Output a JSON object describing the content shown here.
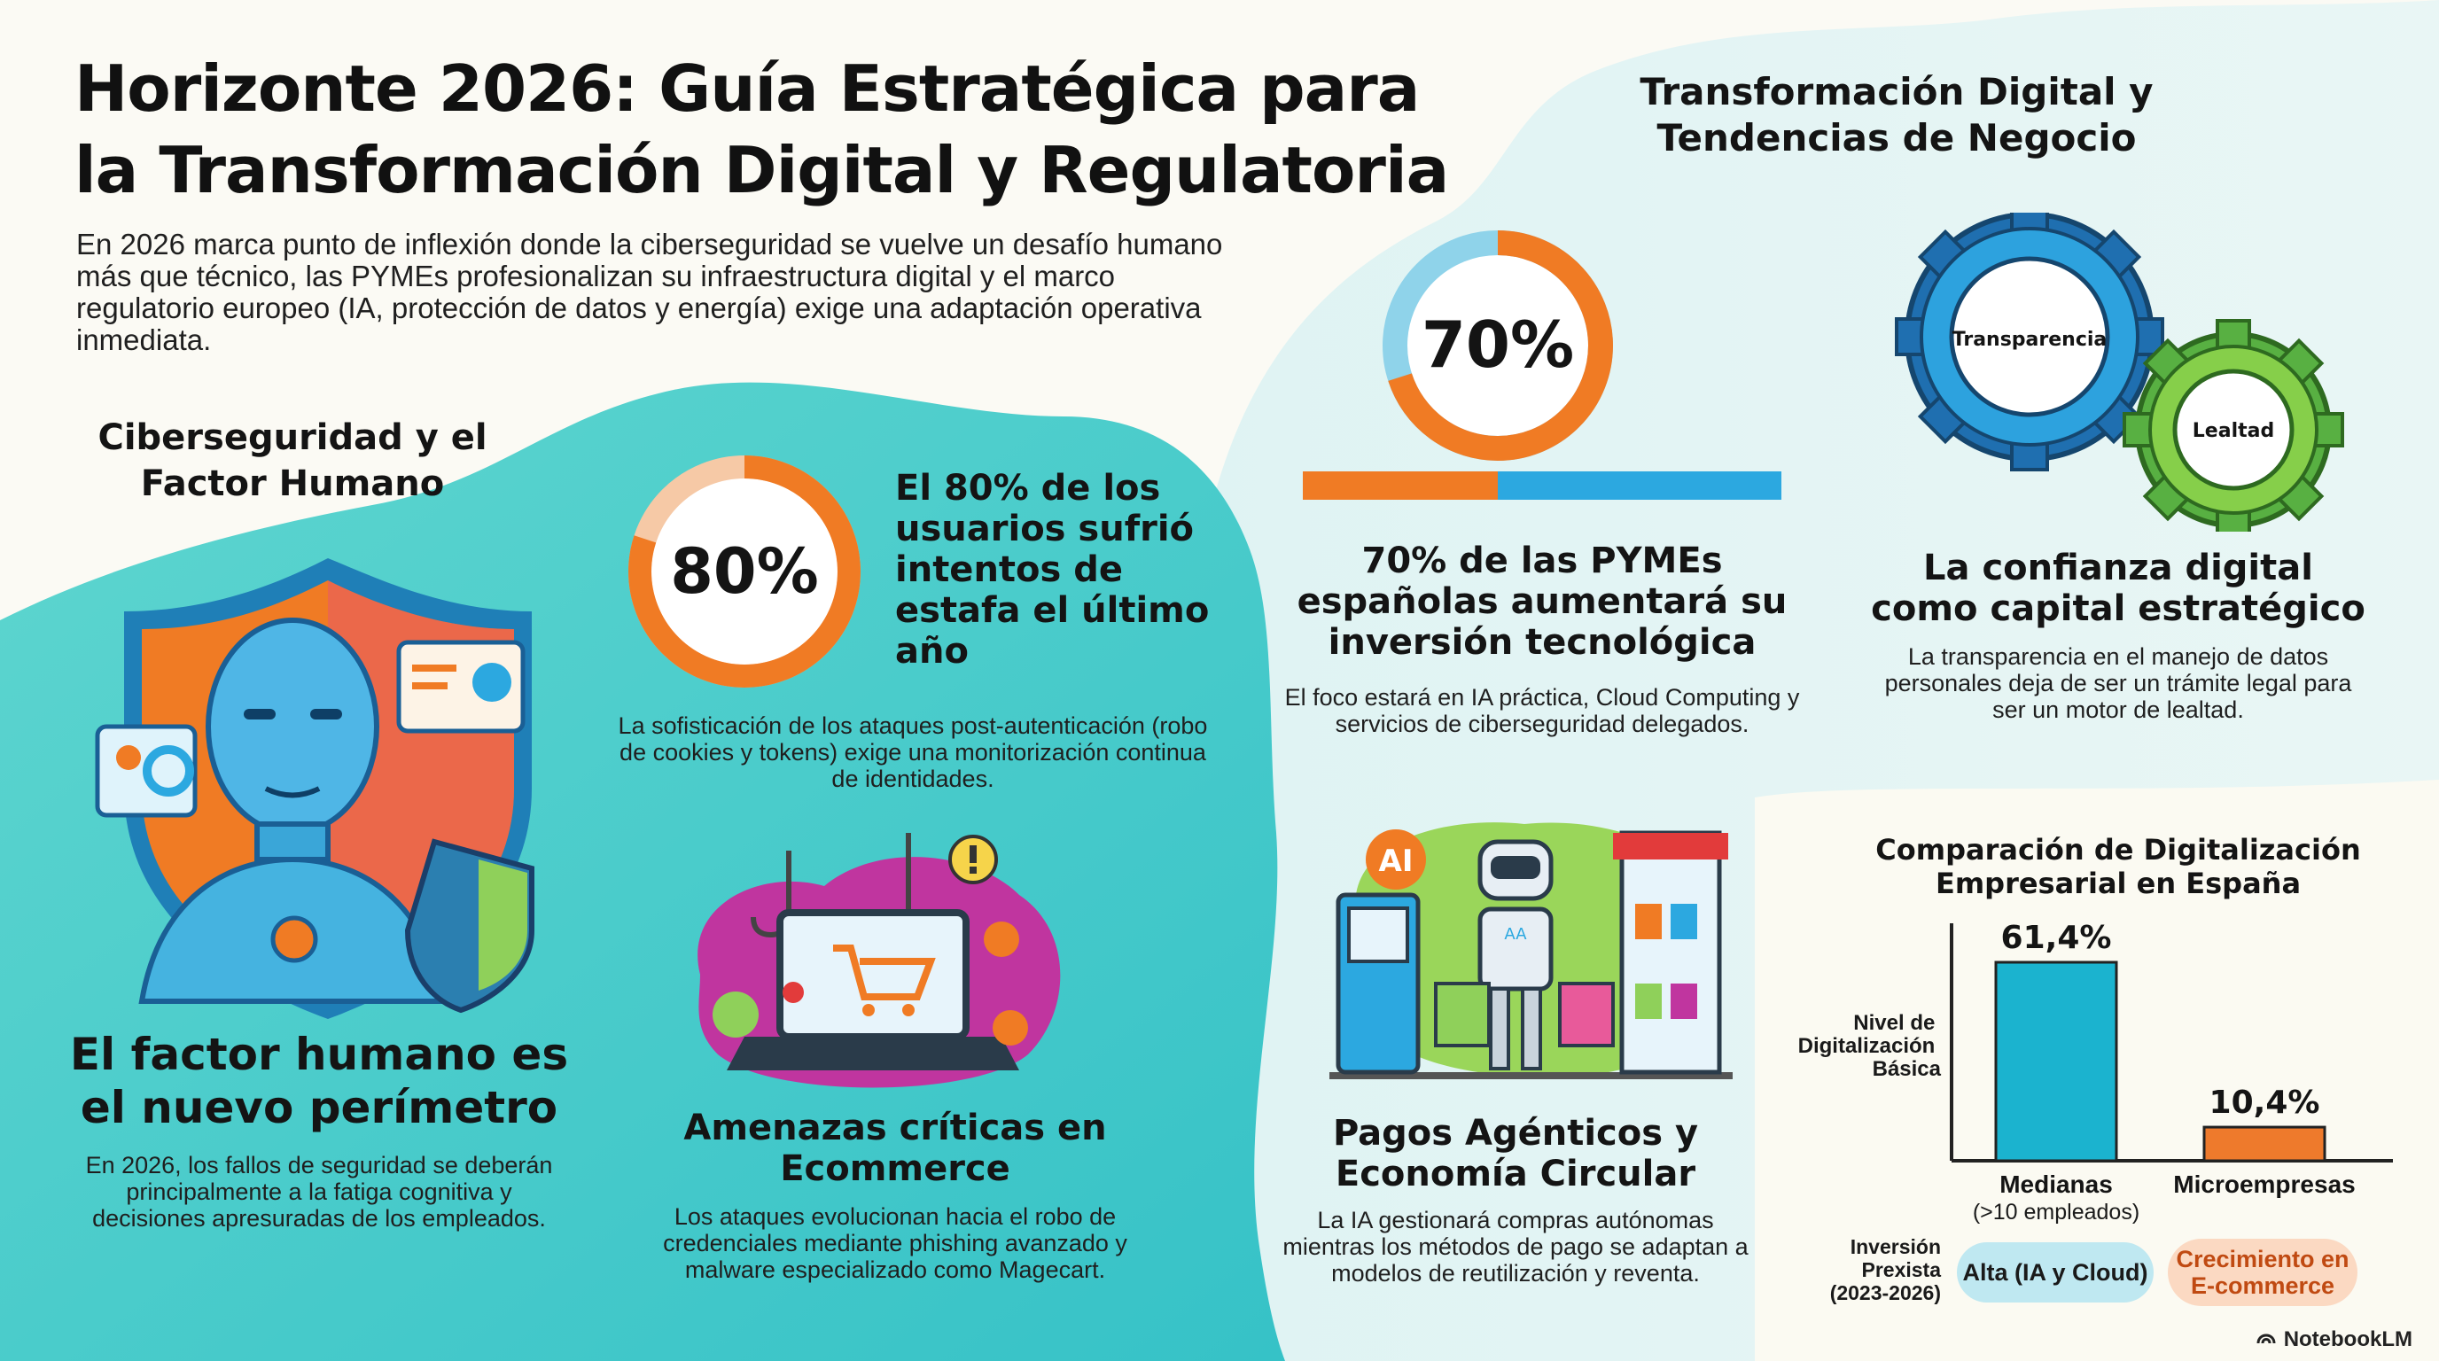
{
  "title": "Horizonte 2026: Guía Estratégica para la Transformación Digital y Regulatoria",
  "intro": "En 2026 marca punto de inflexión donde la ciberseguridad se vuelve un desafío humano más que técnico, las PYMEs profesionalizan su infraestructura digital y el marco regulatorio europeo (IA, protección de datos y energía) exige una adaptación operativa inmediata.",
  "left": {
    "heading": "Ciberseguridad y el Factor Humano",
    "stat": {
      "value": "80%",
      "fraction": 0.8,
      "headline": "El 80% de los usuarios sufrió intentos de estafa el último año",
      "desc": "La sofisticación de los ataques post-autenticación (robo de cookies y tokens) exige una monitorización continua de identidades."
    },
    "human": {
      "headline": "El factor humano es el nuevo perímetro",
      "desc": "En 2026, los fallos de seguridad se deberán principalmente a la fatiga cognitiva y decisiones apresuradas de los empleados."
    },
    "ecommerce": {
      "headline": "Amenazas críticas en Ecommerce",
      "desc": "Los ataques evolucionan hacia el robo de credenciales mediante phishing avanzado y malware especializado como Magecart."
    }
  },
  "right": {
    "heading": "Transformación Digital y Tendencias de Negocio",
    "stat": {
      "value": "70%",
      "fraction": 0.7,
      "headline": "70% de las PYMEs españolas aumentará su inversión tecnológica",
      "desc": "El foco estará en IA práctica, Cloud Computing y servicios de ciberseguridad delegados."
    },
    "trust": {
      "gear1": "Transparencia",
      "gear2": "Lealtad",
      "headline": "La confianza digital como capital estratégico",
      "desc": "La transparencia en el manejo de datos personales deja de ser un trámite legal para ser un motor de lealtad."
    },
    "payments": {
      "ai_badge": "AI",
      "robot_tag": "AA",
      "headline": "Pagos Agénticos y Economía Circular",
      "desc": "La IA gestionará compras autónomas mientras los métodos de pago se adaptan a modelos de reutilización y reventa."
    }
  },
  "chart_data": {
    "type": "bar",
    "title": "Comparación de Digitalización Empresarial en España",
    "ylabel": "Nivel de Digitalización Básica",
    "categories": [
      "Medianas",
      "Microempresas"
    ],
    "category_notes": [
      "(>10 empleados)",
      ""
    ],
    "values": [
      61.4,
      10.4
    ],
    "value_labels": [
      "61,4%",
      "10,4%"
    ],
    "colors": [
      "#1bb3cf",
      "#ee7a2c"
    ],
    "ylim": [
      0,
      61.4
    ],
    "row_label": "Inversión Prexista (2023-2026)",
    "row_values": [
      "Alta (IA y Cloud)",
      "Crecimiento en E-commerce"
    ]
  },
  "brand": "NotebookLM",
  "colors": {
    "teal": "#3fcfd0",
    "orange": "#f07b24",
    "blue": "#2ca8e0",
    "green": "#7cc43a"
  }
}
